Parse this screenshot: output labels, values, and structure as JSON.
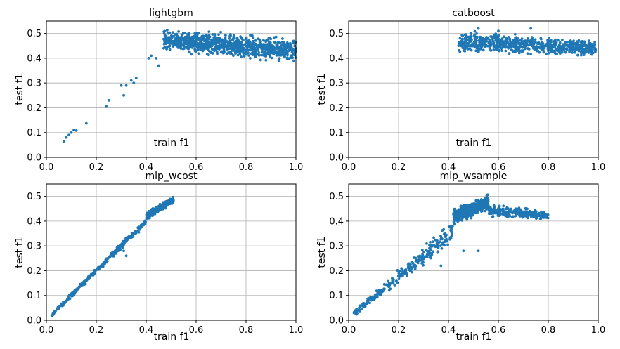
{
  "chart_data": [
    {
      "type": "scatter",
      "title": "lightgbm",
      "xlabel": "train f1",
      "ylabel": "test f1",
      "xlim": [
        0.0,
        1.0
      ],
      "ylim": [
        0.0,
        0.55
      ],
      "xticks": [
        "0.0",
        "0.2",
        "0.4",
        "0.6",
        "0.8",
        "1.0"
      ],
      "yticks": [
        "0.0",
        "0.1",
        "0.2",
        "0.3",
        "0.4",
        "0.5"
      ],
      "grid": true,
      "color": "#1f77b4",
      "points": [
        [
          0.07,
          0.065
        ],
        [
          0.08,
          0.08
        ],
        [
          0.09,
          0.09
        ],
        [
          0.1,
          0.1
        ],
        [
          0.11,
          0.11
        ],
        [
          0.12,
          0.108
        ],
        [
          0.16,
          0.137
        ],
        [
          0.24,
          0.205
        ],
        [
          0.25,
          0.23
        ],
        [
          0.3,
          0.29
        ],
        [
          0.31,
          0.25
        ],
        [
          0.32,
          0.29
        ],
        [
          0.34,
          0.31
        ],
        [
          0.35,
          0.3
        ],
        [
          0.36,
          0.32
        ],
        [
          0.41,
          0.4
        ],
        [
          0.42,
          0.41
        ],
        [
          0.44,
          0.4
        ],
        [
          0.45,
          0.37
        ],
        [
          0.47,
          0.44
        ]
      ],
      "clusters": [
        {
          "count": 900,
          "x_range": [
            0.47,
            1.0
          ],
          "y_start": [
            0.42,
            0.53
          ],
          "y_end": [
            0.37,
            0.49
          ]
        }
      ]
    },
    {
      "type": "scatter",
      "title": "catboost",
      "xlabel": "train f1",
      "ylabel": "test f1",
      "xlim": [
        0.0,
        1.0
      ],
      "ylim": [
        0.0,
        0.55
      ],
      "xticks": [
        "0.0",
        "0.2",
        "0.4",
        "0.6",
        "0.8",
        "1.0"
      ],
      "yticks": [
        "0.0",
        "0.1",
        "0.2",
        "0.3",
        "0.4",
        "0.5"
      ],
      "grid": true,
      "color": "#1f77b4",
      "points": [
        [
          0.73,
          0.52
        ],
        [
          0.52,
          0.52
        ],
        [
          0.6,
          0.51
        ]
      ],
      "clusters": [
        {
          "count": 700,
          "x_range": [
            0.44,
            0.99
          ],
          "y_start": [
            0.41,
            0.52
          ],
          "y_end": [
            0.4,
            0.48
          ]
        }
      ]
    },
    {
      "type": "scatter",
      "title": "mlp_wcost",
      "xlabel": "train f1",
      "ylabel": "test f1",
      "xlim": [
        0.0,
        1.0
      ],
      "ylim": [
        0.0,
        0.55
      ],
      "xticks": [
        "0.0",
        "0.2",
        "0.4",
        "0.6",
        "0.8",
        "1.0"
      ],
      "yticks": [
        "0.0",
        "0.1",
        "0.2",
        "0.3",
        "0.4",
        "0.5"
      ],
      "grid": true,
      "color": "#1f77b4",
      "points": [
        [
          0.31,
          0.28
        ],
        [
          0.32,
          0.26
        ],
        [
          0.43,
          0.45
        ],
        [
          0.45,
          0.46
        ]
      ],
      "clusters": [
        {
          "count": 260,
          "x_range": [
            0.02,
            0.4
          ],
          "y_start": [
            0.01,
            0.03
          ],
          "y_end": [
            0.38,
            0.42
          ]
        },
        {
          "count": 200,
          "x_range": [
            0.4,
            0.51
          ],
          "y_start": [
            0.4,
            0.44
          ],
          "y_end": [
            0.47,
            0.505
          ]
        }
      ]
    },
    {
      "type": "scatter",
      "title": "mlp_wsample",
      "xlabel": "train f1",
      "ylabel": "test f1",
      "xlim": [
        0.0,
        1.0
      ],
      "ylim": [
        0.0,
        0.55
      ],
      "xticks": [
        "0.0",
        "0.2",
        "0.4",
        "0.6",
        "0.8",
        "1.0"
      ],
      "yticks": [
        "0.0",
        "0.1",
        "0.2",
        "0.3",
        "0.4",
        "0.5"
      ],
      "grid": true,
      "color": "#1f77b4",
      "points": [
        [
          0.37,
          0.22
        ],
        [
          0.52,
          0.28
        ],
        [
          0.46,
          0.28
        ],
        [
          0.33,
          0.26
        ]
      ],
      "clusters": [
        {
          "count": 280,
          "x_range": [
            0.02,
            0.42
          ],
          "y_start": [
            0.01,
            0.04
          ],
          "y_end": [
            0.3,
            0.42
          ]
        },
        {
          "count": 420,
          "x_range": [
            0.42,
            0.56
          ],
          "y_start": [
            0.38,
            0.46
          ],
          "y_end": [
            0.44,
            0.51
          ]
        },
        {
          "count": 260,
          "x_range": [
            0.56,
            0.8
          ],
          "y_start": [
            0.41,
            0.48
          ],
          "y_end": [
            0.4,
            0.44
          ]
        }
      ]
    }
  ]
}
